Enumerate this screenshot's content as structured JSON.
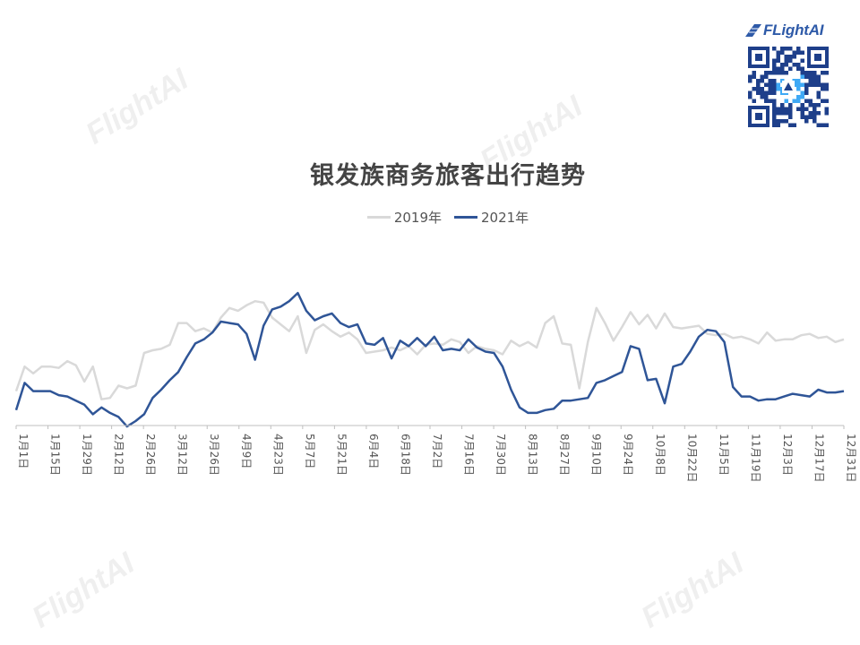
{
  "brand": {
    "logo_text": "FLightAI",
    "watermark_text": "FlightAI"
  },
  "chart_data": {
    "type": "line",
    "title": "银发族商务旅客出行趋势",
    "legend_placement": "top-center",
    "grid": false,
    "y_axis_visible": false,
    "ylim": [
      0,
      100
    ],
    "x_start": "1月1日",
    "x_end": "12月31日",
    "tick_labels": [
      "1月1日",
      "1月15日",
      "1月29日",
      "2月12日",
      "2月26日",
      "3月12日",
      "3月26日",
      "4月9日",
      "4月23日",
      "5月7日",
      "5月21日",
      "6月4日",
      "6月18日",
      "7月2日",
      "7月16日",
      "7月30日",
      "8月13日",
      "8月27日",
      "9月10日",
      "9月24日",
      "10月8日",
      "10月22日",
      "11月5日",
      "11月19日",
      "12月3日",
      "12月17日",
      "12月31日"
    ],
    "series": [
      {
        "name": "2019年",
        "color": "#d9d9d9",
        "values": [
          22,
          40,
          35,
          40,
          40,
          39,
          44,
          41,
          29,
          40,
          16,
          17,
          26,
          24,
          26,
          50,
          52,
          53,
          56,
          72,
          72,
          66,
          68,
          65,
          76,
          83,
          81,
          85,
          88,
          87,
          76,
          71,
          66,
          77,
          50,
          67,
          71,
          66,
          62,
          65,
          60,
          50,
          51,
          52,
          54,
          52,
          55,
          49,
          56,
          57,
          56,
          60,
          58,
          50,
          55,
          53,
          52,
          49,
          59,
          55,
          58,
          54,
          72,
          77,
          57,
          56,
          24,
          58,
          83,
          72,
          59,
          69,
          80,
          71,
          78,
          68,
          79,
          69,
          68,
          69,
          70,
          64,
          63,
          64,
          61,
          62,
          60,
          57,
          65,
          59,
          60,
          60,
          63,
          64,
          61,
          62,
          58,
          60
        ]
      },
      {
        "name": "2021年",
        "color": "#2f5597",
        "values": [
          8,
          28,
          22,
          22,
          22,
          19,
          18,
          15,
          12,
          5,
          10,
          6,
          3,
          -4,
          0,
          5,
          17,
          23,
          30,
          36,
          47,
          57,
          60,
          65,
          73,
          72,
          71,
          64,
          45,
          70,
          82,
          84,
          88,
          94,
          81,
          74,
          77,
          79,
          72,
          69,
          71,
          57,
          56,
          61,
          46,
          59,
          55,
          61,
          55,
          62,
          52,
          53,
          52,
          60,
          54,
          51,
          50,
          40,
          23,
          10,
          6,
          6,
          8,
          9,
          15,
          15,
          16,
          17,
          28,
          30,
          33,
          36,
          55,
          53,
          30,
          31,
          13,
          40,
          42,
          51,
          62,
          67,
          66,
          58,
          25,
          18,
          18,
          15,
          16,
          16,
          18,
          20,
          19,
          18,
          23,
          21,
          21,
          22
        ]
      }
    ]
  }
}
